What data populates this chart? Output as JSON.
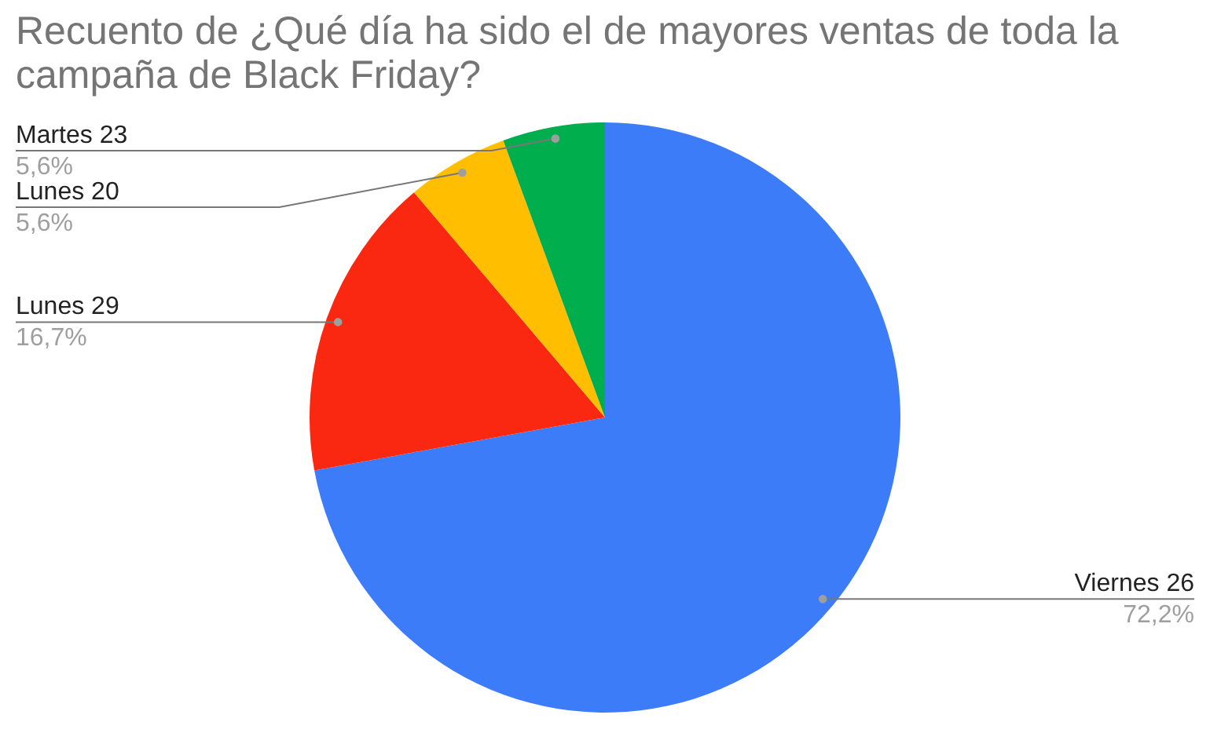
{
  "chart_data": {
    "type": "pie",
    "title": "Recuento de ¿Qué día ha sido el de mayores ventas de toda la campaña de Black Friday?",
    "categories": [
      "Viernes 26",
      "Lunes 29",
      "Lunes 20",
      "Martes 23"
    ],
    "values": [
      72.2,
      16.7,
      5.6,
      5.6
    ],
    "colors": [
      "#3d7cf9",
      "#fa2811",
      "#ffbe00",
      "#00ae4e"
    ],
    "value_labels": [
      "72,2%",
      "16,7%",
      "5,6%",
      "5,6%"
    ]
  }
}
